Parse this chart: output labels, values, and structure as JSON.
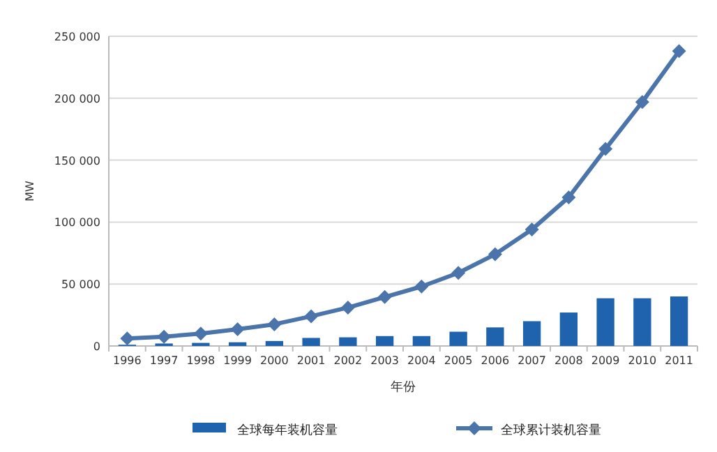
{
  "chart_data": {
    "type": "bar",
    "xlabel": "年份",
    "ylabel": "MW",
    "categories": [
      "1996",
      "1997",
      "1998",
      "1999",
      "2000",
      "2001",
      "2002",
      "2003",
      "2004",
      "2005",
      "2006",
      "2007",
      "2008",
      "2009",
      "2010",
      "2011"
    ],
    "series": [
      {
        "name": "全球每年装机容量",
        "color": "#1f62ad",
        "values": [
          1000,
          2000,
          2500,
          3000,
          4000,
          6500,
          7000,
          8000,
          8000,
          11500,
          15000,
          20000,
          27000,
          38500,
          38500,
          40000
        ]
      },
      {
        "name": "全球累计装机容量",
        "type": "line",
        "color": "#4a74aa",
        "marker": "diamond",
        "values": [
          6000,
          7500,
          10000,
          13500,
          17500,
          24000,
          31000,
          39500,
          48000,
          59000,
          74000,
          94000,
          120000,
          159000,
          197000,
          238000
        ]
      }
    ],
    "ylim": [
      0,
      250000
    ],
    "yticks": [
      {
        "value": 0,
        "label": "0"
      },
      {
        "value": 50000,
        "label": "50 000"
      },
      {
        "value": 100000,
        "label": "100 000"
      },
      {
        "value": 150000,
        "label": "150 000"
      },
      {
        "value": 200000,
        "label": "200 000"
      },
      {
        "value": 250000,
        "label": "250 000"
      }
    ],
    "grid": "y",
    "legend": "bottom"
  }
}
